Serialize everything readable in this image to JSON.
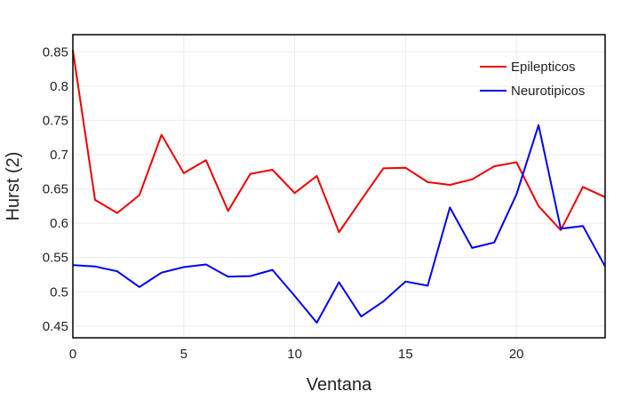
{
  "chart_data": {
    "type": "line",
    "title": "",
    "xlabel": "Ventana",
    "ylabel": "Hurst (2)",
    "xlim": [
      0,
      24
    ],
    "ylim": [
      0.433,
      0.875
    ],
    "x_ticks": [
      0,
      5,
      10,
      15,
      20
    ],
    "y_ticks": [
      0.45,
      0.5,
      0.55,
      0.6,
      0.65,
      0.7,
      0.75,
      0.8,
      0.85
    ],
    "grid": true,
    "legend_position": "top-right",
    "x": [
      0,
      1,
      2,
      3,
      4,
      5,
      6,
      7,
      8,
      9,
      10,
      11,
      12,
      13,
      14,
      15,
      16,
      17,
      18,
      19,
      20,
      21,
      22,
      23,
      24
    ],
    "series": [
      {
        "name": "Epilepticos",
        "color": "#ee0000",
        "values": [
          0.852,
          0.634,
          0.615,
          0.641,
          0.729,
          0.673,
          0.692,
          0.618,
          0.672,
          0.678,
          0.644,
          0.669,
          0.587,
          0.634,
          0.68,
          0.681,
          0.66,
          0.656,
          0.664,
          0.683,
          0.689,
          0.625,
          0.59,
          0.653,
          0.638
        ]
      },
      {
        "name": "Neurotipicos",
        "color": "#0000ee",
        "values": [
          0.539,
          0.537,
          0.53,
          0.507,
          0.528,
          0.536,
          0.54,
          0.522,
          0.523,
          0.532,
          0.494,
          0.455,
          0.514,
          0.464,
          0.486,
          0.515,
          0.509,
          0.623,
          0.564,
          0.572,
          0.642,
          0.743,
          0.592,
          0.596,
          0.537
        ]
      }
    ]
  }
}
